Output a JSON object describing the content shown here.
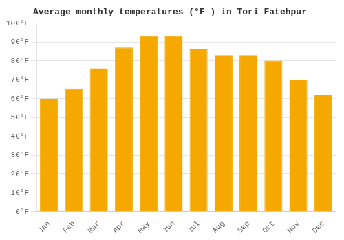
{
  "chart_data": {
    "type": "bar",
    "title": "Average monthly temperatures (°F ) in Tori Fatehpur",
    "categories": [
      "Jan",
      "Feb",
      "Mar",
      "Apr",
      "May",
      "Jun",
      "Jul",
      "Aug",
      "Sep",
      "Oct",
      "Nov",
      "Dec"
    ],
    "values": [
      60,
      65,
      76,
      87,
      93,
      93,
      86,
      83,
      83,
      80,
      70,
      62
    ],
    "color": "#F5A800",
    "ylim": [
      0,
      100
    ],
    "yticks": [
      {
        "value": 0,
        "label": "0°F"
      },
      {
        "value": 10,
        "label": "10°F"
      },
      {
        "value": 20,
        "label": "20°F"
      },
      {
        "value": 30,
        "label": "30°F"
      },
      {
        "value": 40,
        "label": "40°F"
      },
      {
        "value": 50,
        "label": "50°F"
      },
      {
        "value": 60,
        "label": "60°F"
      },
      {
        "value": 70,
        "label": "70°F"
      },
      {
        "value": 80,
        "label": "80°F"
      },
      {
        "value": 90,
        "label": "90°F"
      },
      {
        "value": 100,
        "label": "100°F"
      }
    ],
    "grid": true
  }
}
